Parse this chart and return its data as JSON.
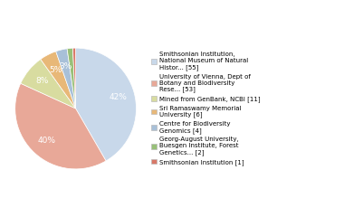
{
  "values": [
    55,
    53,
    11,
    6,
    4,
    2,
    1
  ],
  "colors": [
    "#c8d8ea",
    "#e8a898",
    "#d8dca0",
    "#e8b878",
    "#a8c0d8",
    "#98c078",
    "#d87868"
  ],
  "legend_labels": [
    "Smithsonian Institution,\nNational Museum of Natural\nHistor... [55]",
    "University of Vienna, Dept of\nBotany and Biodiversity\nRese... [53]",
    "Mined from GenBank, NCBI [11]",
    "Sri Ramaswamy Memorial\nUniversity [6]",
    "Centre for Biodiversity\nGenomics [4]",
    "Georg-August University,\nBuesgen Institute, Forest\nGenetics... [2]",
    "Smithsonian Institution [1]"
  ],
  "startangle": 90,
  "figsize": [
    3.8,
    2.4
  ],
  "dpi": 100,
  "pct_threshold": 3
}
